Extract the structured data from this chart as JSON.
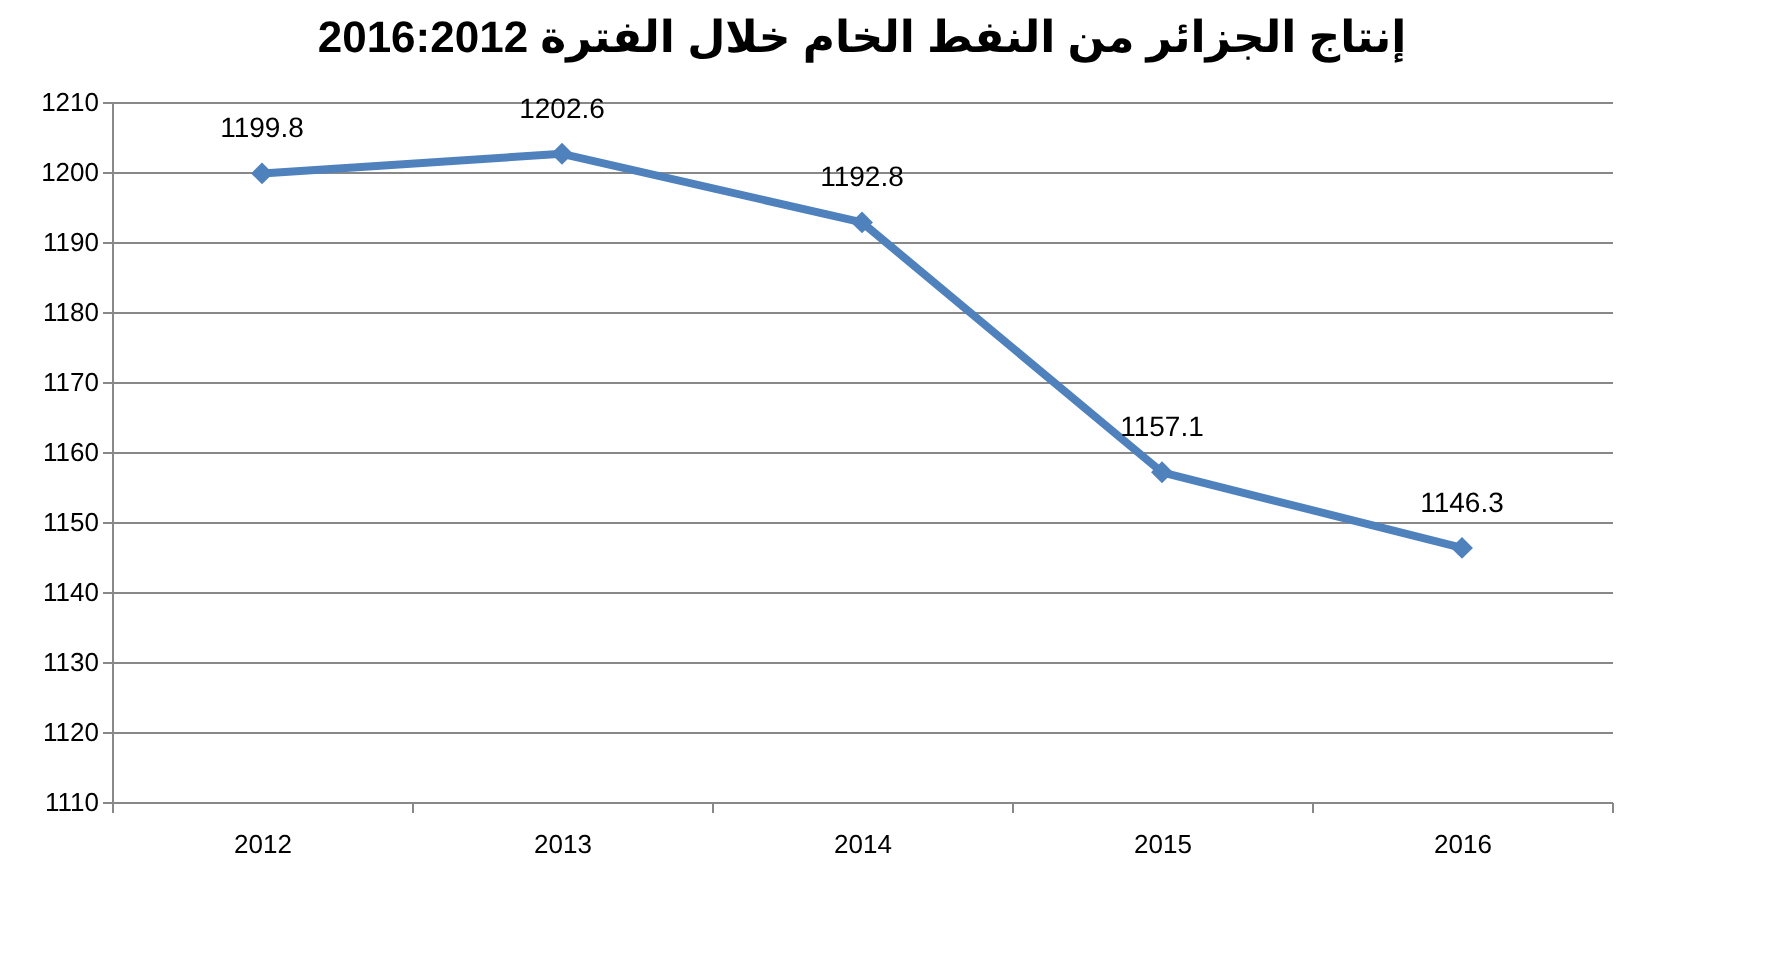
{
  "chart_data": {
    "type": "line",
    "title": "إنتاج الجزائر من النفط الخام خلال الفترة 2016:2012",
    "categories": [
      "2012",
      "2013",
      "2014",
      "2015",
      "2016"
    ],
    "series": [
      {
        "color": "#4f81bd",
        "values": [
          1199.8,
          1202.6,
          1192.8,
          1157.1,
          1146.3
        ]
      }
    ],
    "ylim": [
      1110,
      1210
    ],
    "yticks": [
      1110,
      1120,
      1130,
      1140,
      1150,
      1160,
      1170,
      1180,
      1190,
      1200,
      1210
    ],
    "grid": "y",
    "marker": "diamond",
    "data_labels": true,
    "legend": false
  }
}
